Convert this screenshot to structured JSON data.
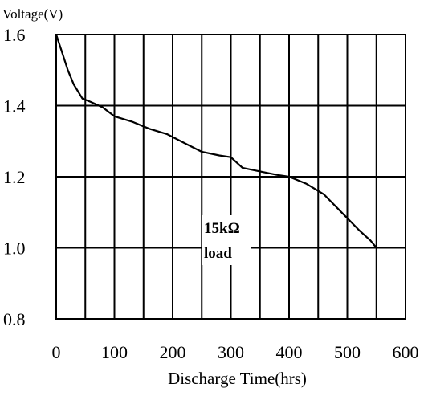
{
  "chart_data": {
    "type": "line",
    "ylabel": "Voltage(V)",
    "xlabel": "Discharge Time(hrs)",
    "xlim": [
      0,
      600
    ],
    "ylim": [
      0.8,
      1.6
    ],
    "x_ticks": [
      "0",
      "100",
      "200",
      "300",
      "400",
      "500",
      "600"
    ],
    "y_ticks": [
      "1.6",
      "1.4",
      "1.2",
      "1.0",
      "0.8"
    ],
    "grid": true,
    "annotation": [
      "15kΩ",
      "load"
    ],
    "series": [
      {
        "color": "#000000",
        "points": [
          [
            0,
            1.6
          ],
          [
            10,
            1.55
          ],
          [
            20,
            1.5
          ],
          [
            30,
            1.46
          ],
          [
            45,
            1.42
          ],
          [
            60,
            1.41
          ],
          [
            80,
            1.395
          ],
          [
            100,
            1.37
          ],
          [
            130,
            1.355
          ],
          [
            160,
            1.335
          ],
          [
            190,
            1.32
          ],
          [
            220,
            1.295
          ],
          [
            250,
            1.27
          ],
          [
            280,
            1.26
          ],
          [
            300,
            1.255
          ],
          [
            320,
            1.225
          ],
          [
            350,
            1.215
          ],
          [
            380,
            1.205
          ],
          [
            400,
            1.2
          ],
          [
            430,
            1.18
          ],
          [
            460,
            1.15
          ],
          [
            490,
            1.1
          ],
          [
            520,
            1.05
          ],
          [
            540,
            1.02
          ],
          [
            550,
            1.0
          ]
        ]
      }
    ]
  }
}
